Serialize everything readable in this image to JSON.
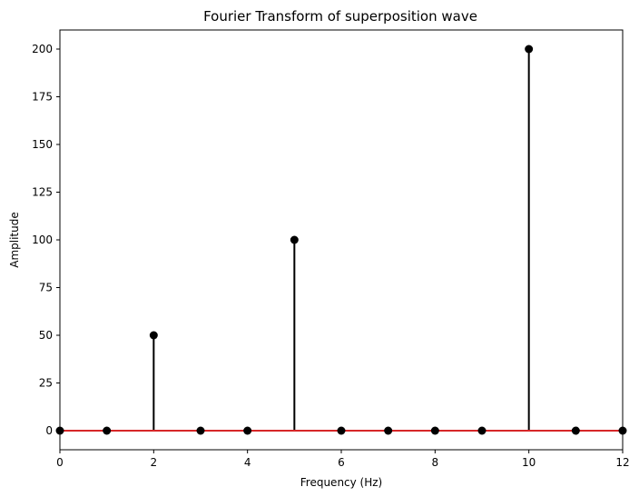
{
  "chart_data": {
    "type": "stem",
    "title": "Fourier Transform of superposition wave",
    "xlabel": "Frequency (Hz)",
    "ylabel": "Amplitude",
    "xlim": [
      0,
      12
    ],
    "ylim": [
      -10,
      210
    ],
    "xticks": [
      0,
      2,
      4,
      6,
      8,
      10,
      12
    ],
    "yticks": [
      0,
      25,
      50,
      75,
      100,
      125,
      150,
      175,
      200
    ],
    "x": [
      0,
      1,
      2,
      3,
      4,
      5,
      6,
      7,
      8,
      9,
      10,
      11,
      12
    ],
    "y": [
      0,
      0,
      50,
      0,
      0,
      100,
      0,
      0,
      0,
      0,
      200,
      0,
      0
    ],
    "grid": false,
    "colors": {
      "stem": "#000000",
      "marker": "#000000",
      "baseline": "#d62728"
    }
  }
}
